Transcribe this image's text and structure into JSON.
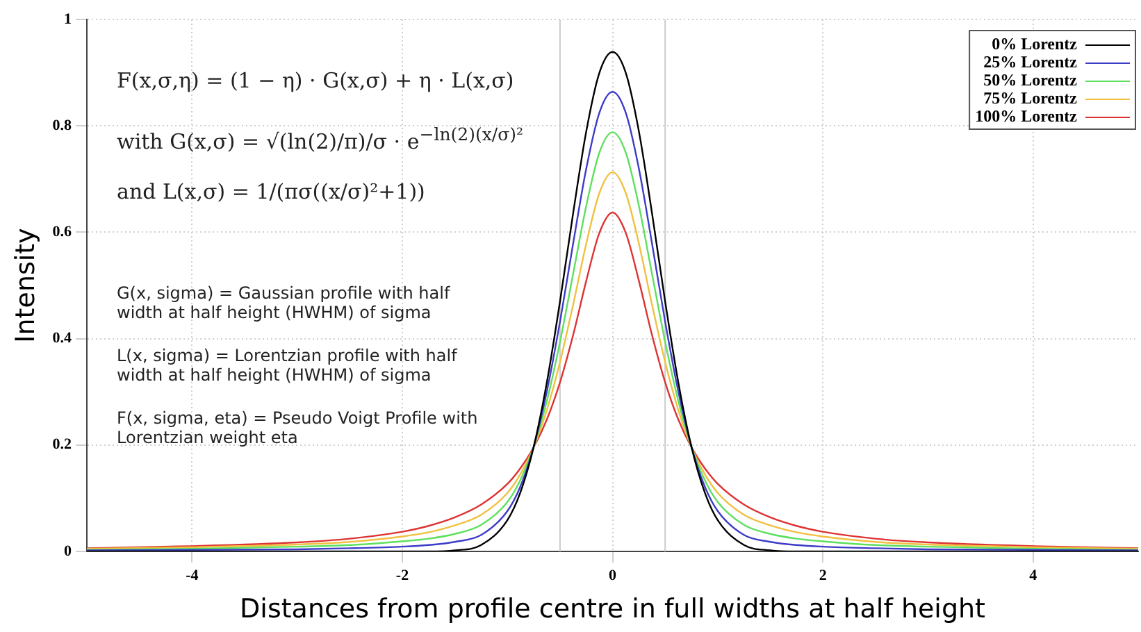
{
  "chart_data": {
    "type": "line",
    "xlabel": "Distances from profile centre in full widths at half height",
    "ylabel": "Intensity",
    "x": [
      -5,
      -4,
      -3,
      -2.5,
      -2,
      -1.75,
      -1.5,
      -1.25,
      -1,
      -0.875,
      -0.75,
      -0.625,
      -0.5,
      -0.375,
      -0.25,
      -0.125,
      0,
      0.125,
      0.25,
      0.375,
      0.5,
      0.625,
      0.75,
      0.875,
      1,
      1.25,
      1.5,
      1.75,
      2,
      2.5,
      3,
      4,
      5
    ],
    "series": [
      {
        "name": "0% Lorentz",
        "color": "#000000",
        "values": [
          0,
          0,
          0,
          0,
          0,
          0,
          0.002,
          0.012,
          0.059,
          0.112,
          0.197,
          0.318,
          0.47,
          0.636,
          0.79,
          0.9,
          0.939,
          0.9,
          0.79,
          0.636,
          0.47,
          0.318,
          0.197,
          0.112,
          0.059,
          0.012,
          0.002,
          0,
          0,
          0,
          0,
          0,
          0
        ]
      },
      {
        "name": "25% Lorentz",
        "color": "#3c3cc8",
        "values": [
          0.002,
          0.003,
          0.004,
          0.006,
          0.009,
          0.012,
          0.018,
          0.031,
          0.076,
          0.123,
          0.197,
          0.301,
          0.432,
          0.579,
          0.72,
          0.825,
          0.864,
          0.825,
          0.72,
          0.579,
          0.432,
          0.301,
          0.197,
          0.123,
          0.076,
          0.031,
          0.018,
          0.012,
          0.009,
          0.006,
          0.004,
          0.003,
          0.002
        ]
      },
      {
        "name": "50% Lorentz",
        "color": "#5ee05e",
        "values": [
          0.003,
          0.005,
          0.009,
          0.012,
          0.019,
          0.024,
          0.033,
          0.05,
          0.093,
          0.135,
          0.197,
          0.283,
          0.394,
          0.522,
          0.65,
          0.75,
          0.788,
          0.75,
          0.65,
          0.522,
          0.394,
          0.283,
          0.197,
          0.135,
          0.093,
          0.05,
          0.033,
          0.024,
          0.019,
          0.012,
          0.009,
          0.005,
          0.003
        ]
      },
      {
        "name": "75% Lorentz",
        "color": "#f0c040",
        "values": [
          0.005,
          0.008,
          0.013,
          0.018,
          0.028,
          0.036,
          0.049,
          0.069,
          0.11,
          0.146,
          0.196,
          0.266,
          0.356,
          0.464,
          0.579,
          0.674,
          0.713,
          0.674,
          0.579,
          0.464,
          0.356,
          0.266,
          0.196,
          0.146,
          0.11,
          0.069,
          0.049,
          0.036,
          0.028,
          0.018,
          0.013,
          0.008,
          0.005
        ]
      },
      {
        "name": "100% Lorentz",
        "color": "#dd3333",
        "values": [
          0.006,
          0.01,
          0.017,
          0.024,
          0.037,
          0.048,
          0.064,
          0.088,
          0.127,
          0.157,
          0.196,
          0.248,
          0.318,
          0.407,
          0.509,
          0.599,
          0.637,
          0.599,
          0.509,
          0.407,
          0.318,
          0.248,
          0.196,
          0.157,
          0.127,
          0.088,
          0.064,
          0.048,
          0.037,
          0.024,
          0.017,
          0.01,
          0.006
        ]
      }
    ],
    "xlim": [
      -5,
      5
    ],
    "xticks": [
      -4,
      -2,
      0,
      2,
      4
    ],
    "ylim": [
      0,
      1
    ],
    "yticks": [
      0,
      0.2,
      0.4,
      0.6,
      0.8,
      1
    ],
    "grid": true,
    "legend": "top right",
    "marker": "none",
    "line_style": "solid",
    "ref_lines": [
      {
        "axis": "x",
        "value": -0.5,
        "color": "#cccccc"
      },
      {
        "axis": "x",
        "value": 0.5,
        "color": "#cccccc"
      }
    ],
    "annotations": [
      "F(x,σ,η) = (1 − η) · G(x,σ) + η · L(x,σ)",
      "with G(x,σ) = √(ln(2)/π)/σ · e$^{−ln(2)(x/σ)²}$",
      "and L(x,σ) = 1/(πσ((x/σ)²+1))",
      "G(x, sigma) = Gaussian profile with half width at half height (HWHM) of sigma",
      "L(x, sigma) = Lorentzian profile with half width at half height (HWHM) of sigma",
      "F(x, sigma, eta) = Pseudo Voigt Profile with Lorentzian weight eta"
    ]
  }
}
